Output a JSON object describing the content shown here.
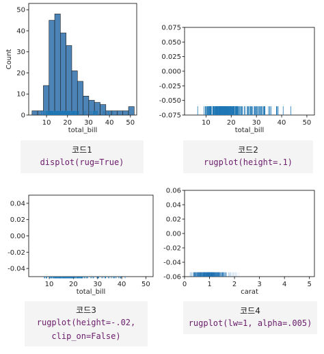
{
  "colors": {
    "bar": "#4c84b8",
    "rug": "#1f77b4",
    "axis": "#000000",
    "code": "#6a1b6a"
  },
  "chart_data": [
    {
      "type": "bar",
      "panel": "top-left",
      "xlabel": "total_bill",
      "ylabel": "Count",
      "xlim": [
        1.5,
        53
      ],
      "ylim": [
        0,
        53
      ],
      "xticks": [
        10,
        20,
        30,
        40,
        50
      ],
      "yticks": [
        0,
        10,
        20,
        30,
        40,
        50
      ],
      "bin_edges": [
        3.07,
        5.78,
        8.48,
        11.19,
        13.9,
        16.61,
        19.31,
        22.02,
        24.73,
        27.44,
        30.14,
        32.85,
        35.56,
        38.27,
        40.97,
        43.68,
        46.39,
        49.1,
        51.81
      ],
      "values": [
        2,
        2,
        14,
        45,
        48,
        39,
        33,
        21,
        16,
        9,
        7,
        6,
        5,
        2,
        2,
        2,
        2,
        4
      ],
      "rug": true
    },
    {
      "type": "rug",
      "panel": "top-right",
      "xlabel": "total_bill",
      "xlim": [
        1.5,
        53
      ],
      "ylim": [
        -0.075,
        0.075
      ],
      "xticks": [
        10,
        20,
        30,
        40,
        50
      ],
      "yticks": [
        "0.075",
        "0.050",
        "0.025",
        "0.000",
        "-0.025",
        "-0.050",
        "-0.075"
      ],
      "height": 0.1
    },
    {
      "type": "rug",
      "panel": "bottom-left",
      "xlabel": "total_bill",
      "xlim": [
        1.5,
        53
      ],
      "ylim": [
        -0.05,
        0.05
      ],
      "xticks": [
        10,
        20,
        30,
        40,
        50
      ],
      "yticks": [
        "0.04",
        "0.02",
        "0.00",
        "-0.02",
        "-0.04"
      ],
      "height": -0.02
    },
    {
      "type": "rug",
      "panel": "bottom-right",
      "xlabel": "carat",
      "xlim": [
        0,
        5.2
      ],
      "ylim": [
        -0.06,
        0.06
      ],
      "xticks": [
        0,
        1,
        2,
        3,
        4,
        5
      ],
      "yticks": [
        "0.06",
        "0.04",
        "0.02",
        "0.00",
        "-0.02",
        "-0.04",
        "-0.06"
      ],
      "alpha": 0.005
    }
  ],
  "captions": [
    {
      "title": "코드1",
      "code": "displot(rug=True)"
    },
    {
      "title": "코드2",
      "code": "rugplot(height=.1)"
    },
    {
      "title": "코드3",
      "code_line1": "rugplot(height=-.02,",
      "code_line2": "clip_on=False)"
    },
    {
      "title": "코드4",
      "code": "rugplot(lw=1, alpha=.005)"
    }
  ]
}
